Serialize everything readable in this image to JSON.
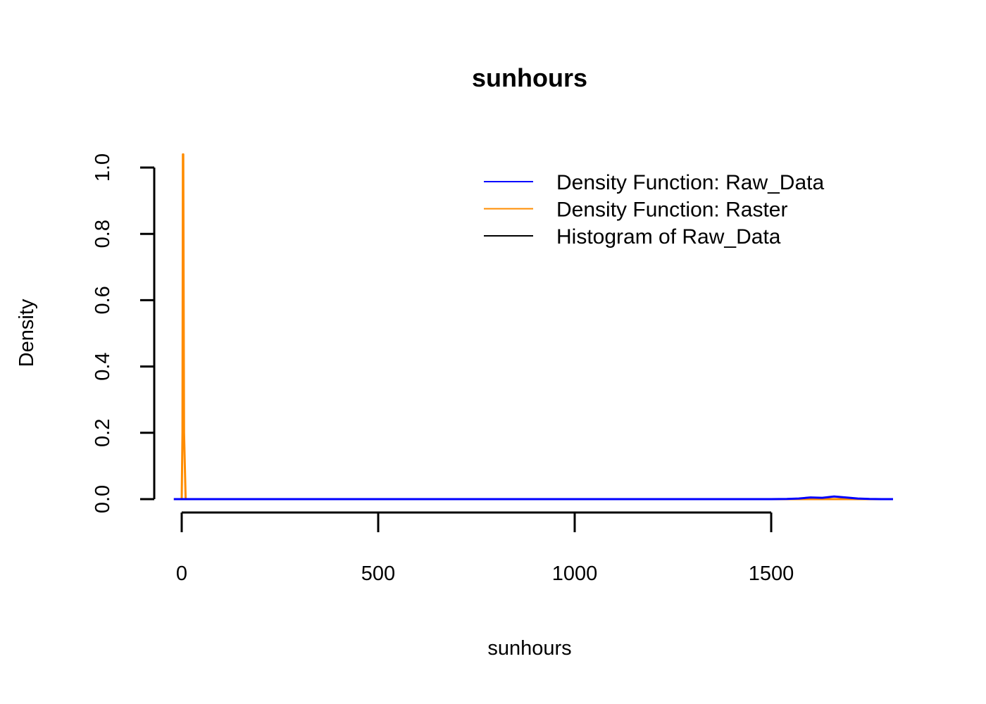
{
  "chart_data": {
    "type": "line",
    "title": "sunhours",
    "xlabel": "sunhours",
    "ylabel": "Density",
    "x_ticks": [
      0,
      500,
      1000,
      1500
    ],
    "y_ticks": [
      0.0,
      0.2,
      0.4,
      0.6,
      0.8,
      1.0
    ],
    "x_tick_labels": [
      "0",
      "500",
      "1000",
      "1500"
    ],
    "y_tick_labels": [
      "0.0",
      "0.2",
      "0.4",
      "0.6",
      "0.8",
      "1.0"
    ],
    "xlim": [
      -20,
      1800
    ],
    "ylim": [
      0,
      1.04
    ],
    "grid": false,
    "legend_position": "top-right",
    "series": [
      {
        "name": "Density Function: Raw_Data",
        "color": "#0000FF",
        "x": [
          -20,
          1500,
          1540,
          1570,
          1600,
          1630,
          1660,
          1690,
          1720,
          1750,
          1780,
          1810
        ],
        "y": [
          0,
          0,
          0.0005,
          0.002,
          0.005,
          0.004,
          0.008,
          0.005,
          0.002,
          0.0005,
          0.0001,
          0
        ]
      },
      {
        "name": "Density Function: Raster",
        "color": "#FF8C00",
        "x": [
          -20,
          0,
          2,
          3,
          4,
          6,
          10,
          30,
          1810
        ],
        "y": [
          0,
          0,
          0.2,
          1.04,
          1.04,
          0.2,
          0,
          0,
          0
        ]
      },
      {
        "name": "Histogram of Raw_Data",
        "color": "#000000",
        "x": [],
        "y": []
      }
    ]
  }
}
